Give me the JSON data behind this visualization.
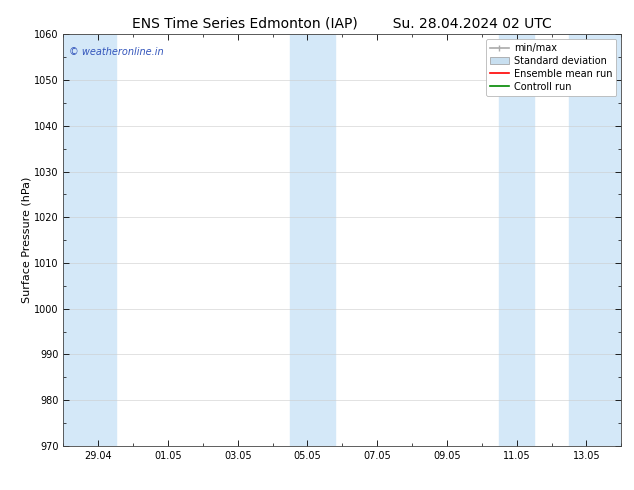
{
  "title_left": "ENS Time Series Edmonton (IAP)",
  "title_right": "Su. 28.04.2024 02 UTC",
  "ylabel": "Surface Pressure (hPa)",
  "ylim": [
    970,
    1060
  ],
  "yticks": [
    970,
    980,
    990,
    1000,
    1010,
    1020,
    1030,
    1040,
    1050,
    1060
  ],
  "xtick_labels": [
    "29.04",
    "01.05",
    "03.05",
    "05.05",
    "07.05",
    "09.05",
    "11.05",
    "13.05"
  ],
  "shaded_band_color": "#d4e8f8",
  "legend_labels": [
    "min/max",
    "Standard deviation",
    "Ensemble mean run",
    "Controll run"
  ],
  "legend_minmax_color": "#aaaaaa",
  "legend_std_color": "#c8dff0",
  "legend_mean_color": "#ff0000",
  "legend_ctrl_color": "#008800",
  "watermark": "© weatheronline.in",
  "watermark_color": "#3355bb",
  "background_color": "#ffffff",
  "title_fontsize": 10,
  "tick_fontsize": 7,
  "ylabel_fontsize": 8,
  "legend_fontsize": 7
}
